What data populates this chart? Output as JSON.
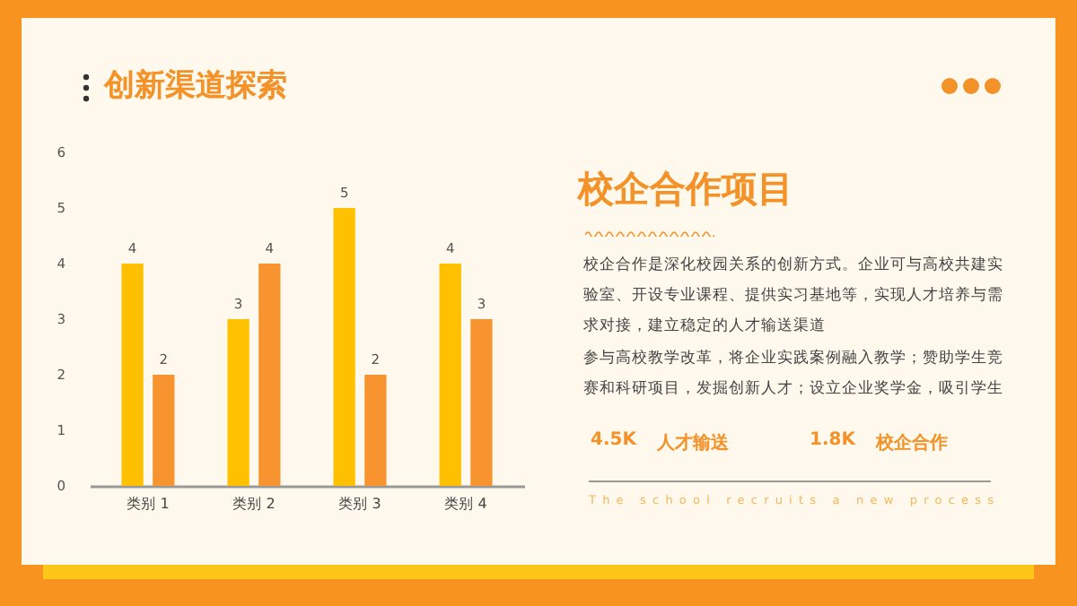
{
  "chart_data": {
    "type": "bar",
    "title": "创新渠道探索",
    "categories": [
      "类别 1",
      "类别 2",
      "类别 3",
      "类别 4"
    ],
    "series": [
      {
        "color": "#ffc000",
        "values": [
          4,
          3,
          5,
          4
        ]
      },
      {
        "color": "#f7942f",
        "values": [
          2,
          4,
          2,
          3
        ]
      }
    ],
    "ylim": [
      0,
      6
    ],
    "yticks": [
      0,
      1,
      2,
      3,
      4,
      5,
      6
    ],
    "grid": false,
    "legend": false,
    "data_labels": true,
    "annotations": [
      "校企合作项目",
      "校企合作是深化校园关系的创新方式。企业可与高校共建实验室、开设专业课程、提供实习基地等，实现人才培养与需求对接，建立稳定的人才输送渠道",
      "参与高校教学改革，将企业实践案例融入教学；赞助学生竞赛和科研项目，发掘创新人才；设立企业奖学金，吸引学生",
      "4.5K",
      "人才输送",
      "1.8K",
      "校企合作",
      "The school recruits a new process"
    ]
  }
}
